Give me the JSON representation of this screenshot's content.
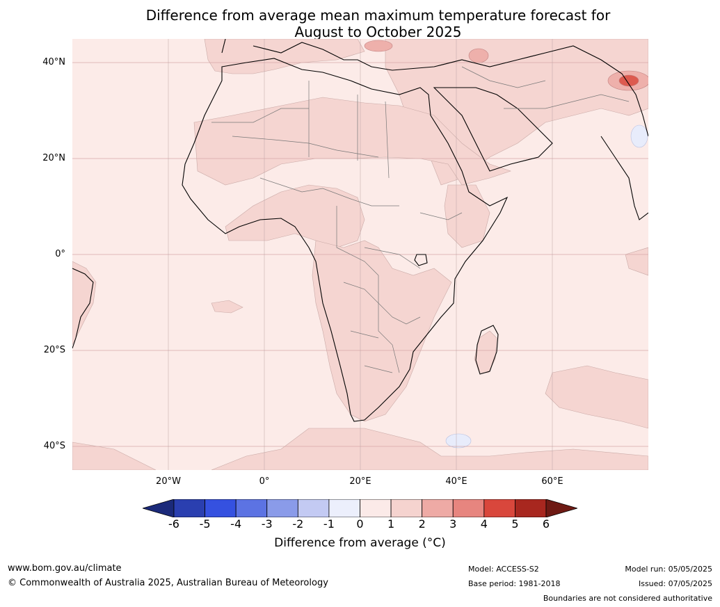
{
  "title_line1": "Difference from average mean maximum temperature forecast for",
  "title_line2": "August to October 2025",
  "lat_labels": [
    "40°N",
    "20°N",
    "0°",
    "20°S",
    "40°S"
  ],
  "lon_labels": [
    "20°W",
    "0°",
    "20°E",
    "40°E",
    "60°E"
  ],
  "colorbar": {
    "ticks": [
      "-6",
      "-5",
      "-4",
      "-3",
      "-2",
      "-1",
      "0",
      "1",
      "2",
      "3",
      "4",
      "5",
      "6"
    ],
    "colors": [
      "#1b2a7a",
      "#2a3fb0",
      "#3551e0",
      "#5c73e3",
      "#8a9be9",
      "#c3caf3",
      "#eceffc",
      "#fbeae8",
      "#f5d3cf",
      "#eeaaa5",
      "#e7857f",
      "#d9473c",
      "#a8271f",
      "#6e1a14"
    ],
    "label": "Difference from average ($^\\circ$C)",
    "label_display": "Difference from average (°C)"
  },
  "footer": {
    "url": "www.bom.gov.au/climate",
    "copyright": "© Commonwealth of Australia 2025, Australian Bureau of Meteorology",
    "model": "Model: ACCESS-S2",
    "base_period": "Base period: 1981-2018",
    "model_run": "Model run: 05/05/2025",
    "issued": "Issued: 07/05/2025",
    "boundaries": "Boundaries are not considered authoritative"
  },
  "map_colors": {
    "background": "#fcebe8",
    "warm_1_2": "#f5d5d1",
    "warm_2_3": "#eeb0ab",
    "warm_4_5": "#dd5a4f",
    "cool": "#e8ecfb",
    "grid": "#d8a8a8"
  }
}
